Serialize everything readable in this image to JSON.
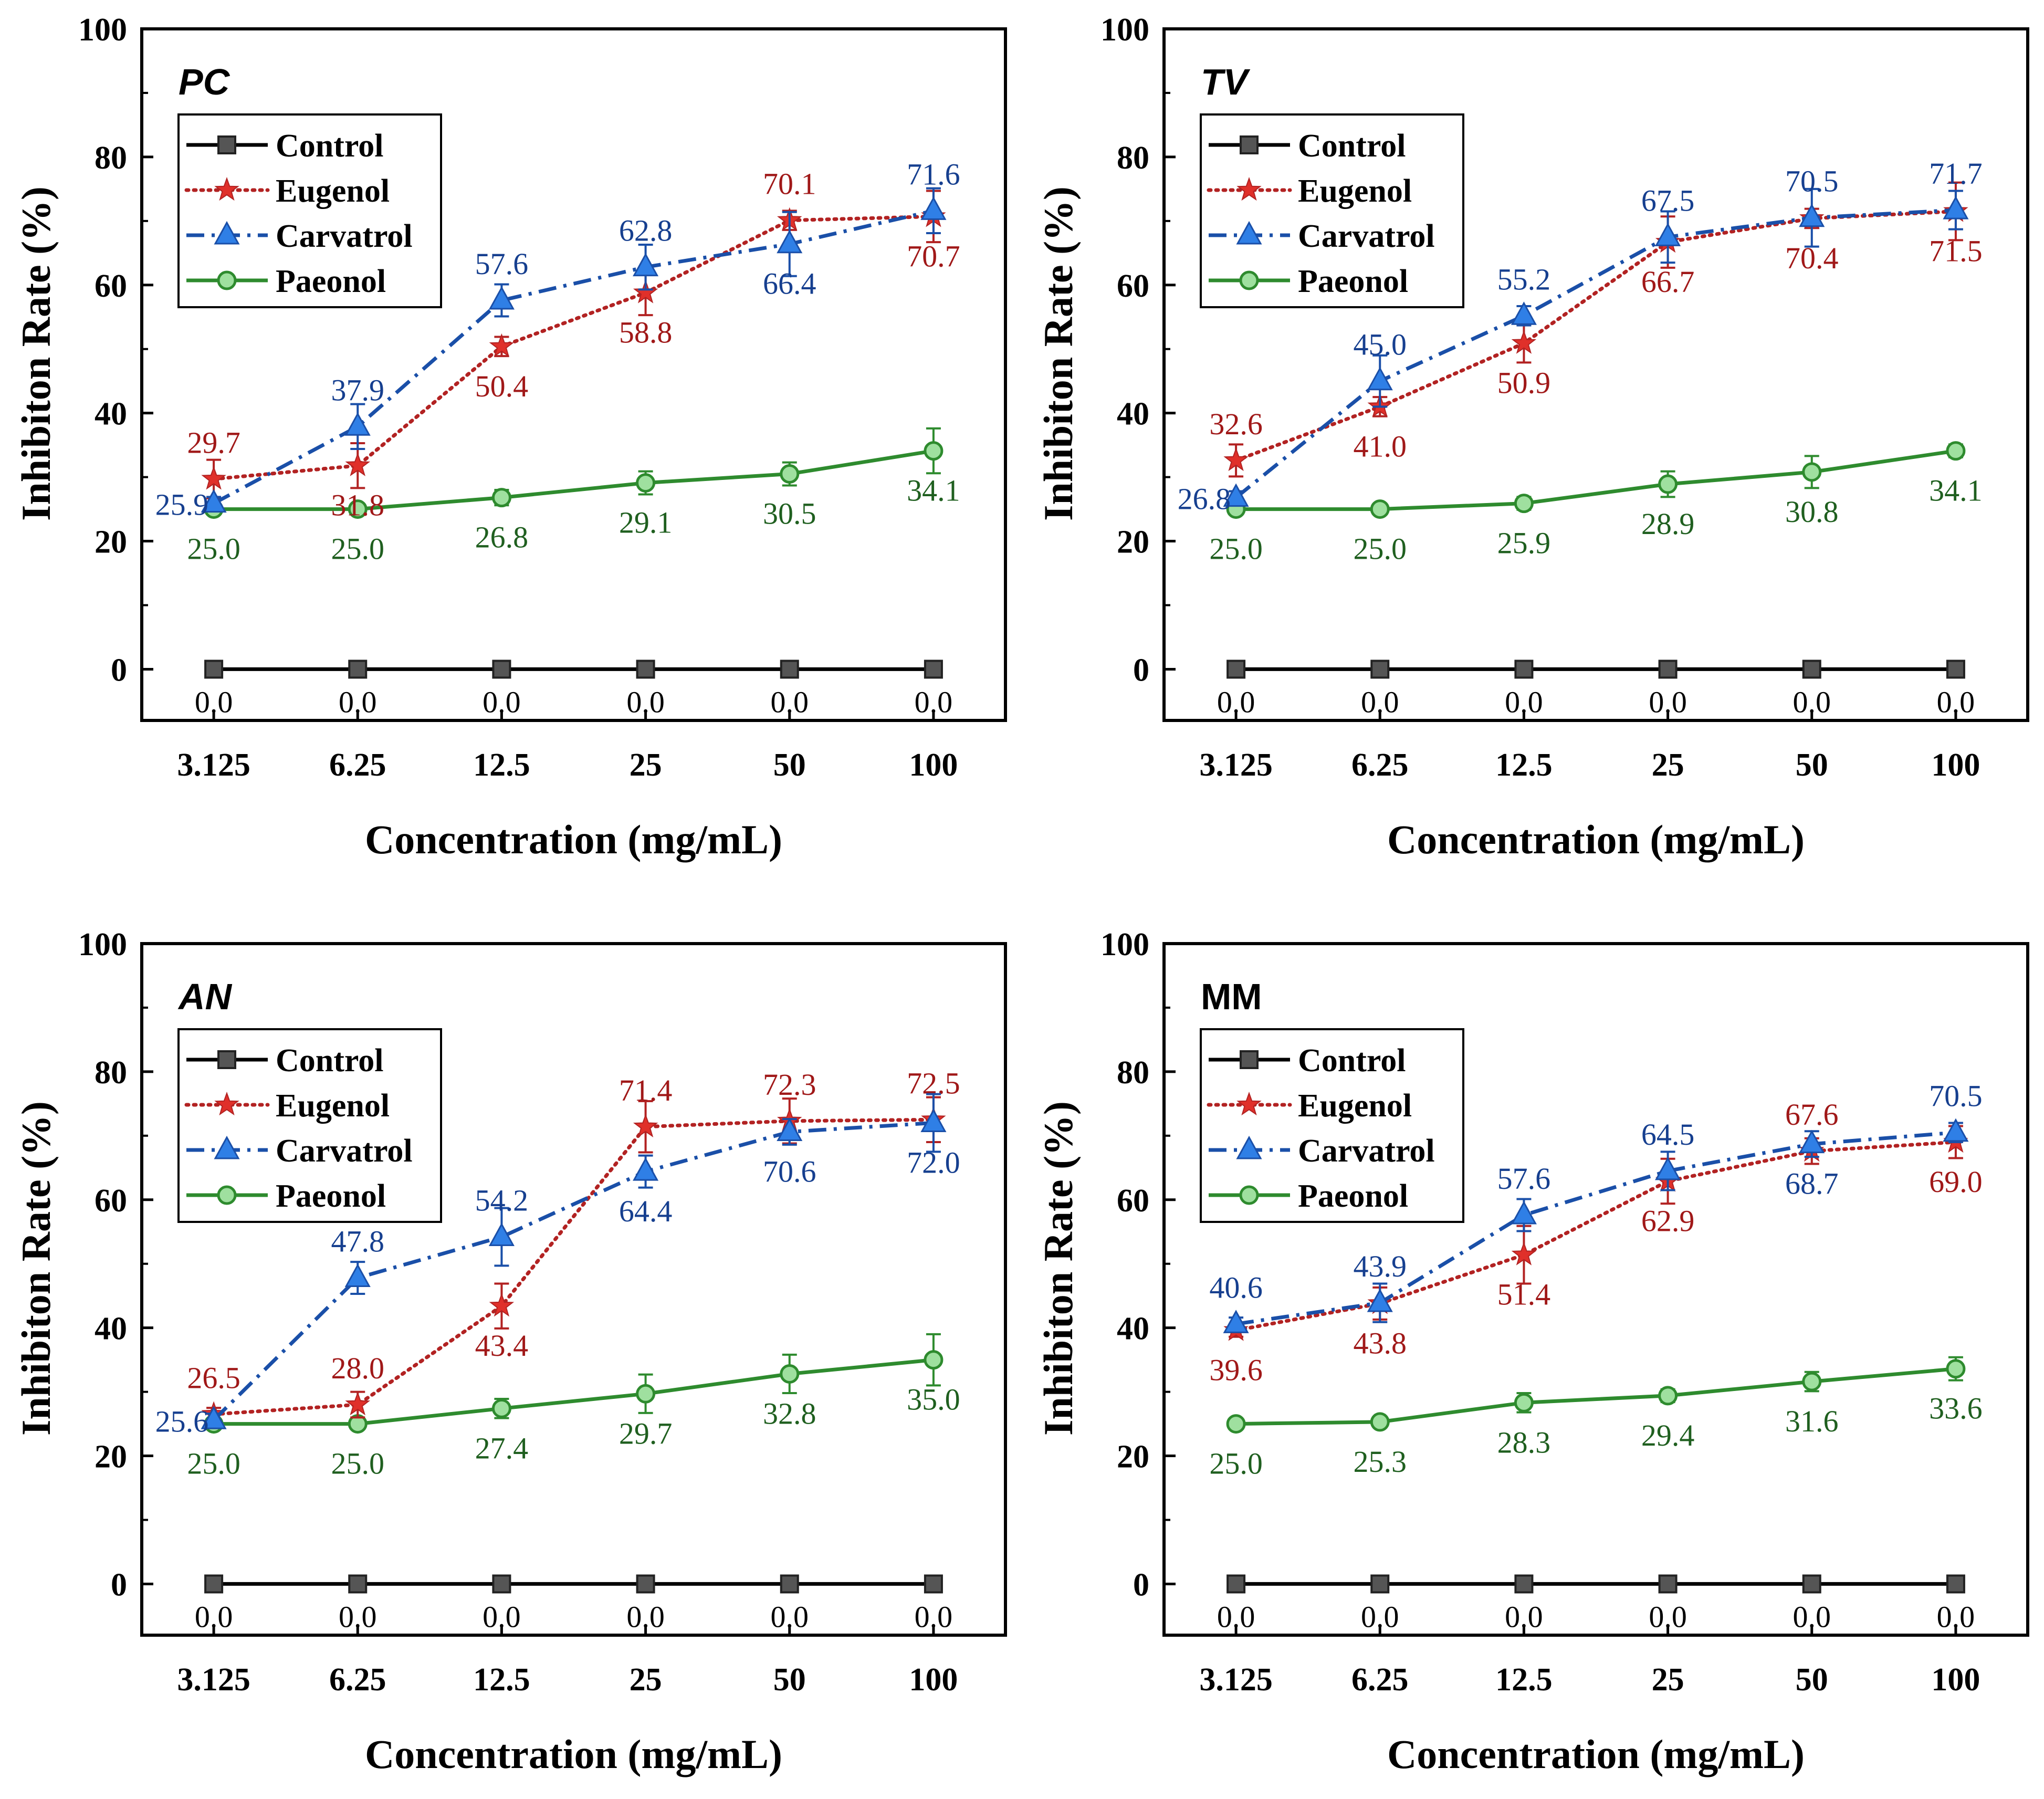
{
  "figure": {
    "x_axis_title": "Concentration (mg/mL)",
    "y_axis_title": "Inhibiton Rate (%)"
  },
  "series_styles": {
    "Control": {
      "color": "#000000",
      "marker": "square",
      "dash": "solid",
      "label_color": "#000000"
    },
    "Eugenol": {
      "color": "#b22222",
      "marker": "star",
      "dash": "dotted",
      "label_color": "#a01818"
    },
    "Carvatrol": {
      "color": "#1a4fa8",
      "marker": "triangle",
      "dash": "dashdot",
      "label_color": "#163f8f"
    },
    "Paeonol": {
      "color": "#2e8b2e",
      "marker": "circle",
      "dash": "solid",
      "label_color": "#1f5f1f"
    }
  },
  "chart_data": [
    {
      "type": "line",
      "title": "PC",
      "title_italic": true,
      "categories": [
        "3.125",
        "6.25",
        "12.5",
        "25",
        "50",
        "100"
      ],
      "xlabel": "Concentration (mg/mL)",
      "ylabel": "Inhibiton Rate (%)",
      "ylim": [
        -8,
        100
      ],
      "yticks": [
        "0",
        "20",
        "40",
        "60",
        "80",
        "100"
      ],
      "legend_position": "top-left",
      "series": [
        {
          "name": "Control",
          "values": [
            0,
            0,
            0,
            0,
            0,
            0
          ],
          "labels": [
            "0.0",
            "0.0",
            "0.0",
            "0.0",
            "0.0",
            "0.0"
          ]
        },
        {
          "name": "Eugenol",
          "values": [
            29.7,
            31.8,
            50.4,
            58.8,
            70.1,
            70.7
          ],
          "error": [
            3,
            3.5,
            1.5,
            3.5,
            1.5,
            4
          ],
          "labels": [
            "29.7",
            "31.8",
            "50.4",
            "58.8",
            "70.1",
            "70.7"
          ]
        },
        {
          "name": "Carvatrol",
          "values": [
            25.9,
            37.9,
            57.6,
            62.8,
            66.4,
            71.6
          ],
          "error": [
            1,
            3.5,
            2.5,
            3.5,
            5,
            3.5
          ],
          "labels": [
            "25.9",
            "37.9",
            "57.6",
            "62.8",
            "66.4",
            "71.6"
          ]
        },
        {
          "name": "Paeonol",
          "values": [
            25.0,
            25.0,
            26.8,
            29.1,
            30.5,
            34.1
          ],
          "error": [
            0.8,
            0.8,
            1.2,
            1.8,
            1.8,
            3.5
          ],
          "labels": [
            "25.0",
            "25.0",
            "26.8",
            "29.1",
            "30.5",
            "34.1"
          ]
        }
      ]
    },
    {
      "type": "line",
      "title": "TV",
      "title_italic": true,
      "categories": [
        "3.125",
        "6.25",
        "12.5",
        "25",
        "50",
        "100"
      ],
      "xlabel": "Concentration (mg/mL)",
      "ylabel": "Inhibiton Rate (%)",
      "ylim": [
        -8,
        100
      ],
      "yticks": [
        "0",
        "20",
        "40",
        "60",
        "80",
        "100"
      ],
      "legend_position": "top-left",
      "series": [
        {
          "name": "Control",
          "values": [
            0,
            0,
            0,
            0,
            0,
            0
          ],
          "labels": [
            "0.0",
            "0.0",
            "0.0",
            "0.0",
            "0.0",
            "0.0"
          ]
        },
        {
          "name": "Eugenol",
          "values": [
            32.6,
            41.0,
            50.9,
            66.7,
            70.4,
            71.5
          ],
          "error": [
            2.5,
            1.5,
            3,
            4,
            1.5,
            4.5
          ],
          "labels": [
            "32.6",
            "41.0",
            "50.9",
            "66.7",
            "70.4",
            "71.5"
          ]
        },
        {
          "name": "Carvatrol",
          "values": [
            26.8,
            45.0,
            55.2,
            67.5,
            70.5,
            71.7
          ],
          "error": [
            1,
            4,
            1.5,
            4,
            4.5,
            3
          ],
          "labels": [
            "26.8",
            "45.0",
            "55.2",
            "67.5",
            "70.5",
            "71.7"
          ]
        },
        {
          "name": "Paeonol",
          "values": [
            25.0,
            25.0,
            25.9,
            28.9,
            30.8,
            34.1
          ],
          "error": [
            0.8,
            0.8,
            1,
            2,
            2.5,
            1
          ],
          "labels": [
            "25.0",
            "25.0",
            "25.9",
            "28.9",
            "30.8",
            "34.1"
          ]
        }
      ]
    },
    {
      "type": "line",
      "title": "AN",
      "title_italic": true,
      "categories": [
        "3.125",
        "6.25",
        "12.5",
        "25",
        "50",
        "100"
      ],
      "xlabel": "Concentration (mg/mL)",
      "ylabel": "Inhibiton Rate (%)",
      "ylim": [
        -8,
        100
      ],
      "yticks": [
        "0",
        "20",
        "40",
        "60",
        "80",
        "100"
      ],
      "legend_position": "top-left",
      "series": [
        {
          "name": "Control",
          "values": [
            0,
            0,
            0,
            0,
            0,
            0
          ],
          "labels": [
            "0.0",
            "0.0",
            "0.0",
            "0.0",
            "0.0",
            "0.0"
          ]
        },
        {
          "name": "Eugenol",
          "values": [
            26.5,
            28.0,
            43.4,
            71.4,
            72.3,
            72.5
          ],
          "error": [
            1,
            2,
            3.5,
            4,
            3.5,
            3.5
          ],
          "labels": [
            "26.5",
            "28.0",
            "43.4",
            "71.4",
            "72.3",
            "72.5"
          ]
        },
        {
          "name": "Carvatrol",
          "values": [
            25.6,
            47.8,
            54.2,
            64.4,
            70.6,
            72.0
          ],
          "error": [
            1,
            2.5,
            4.5,
            2.5,
            2,
            4.5
          ],
          "labels": [
            "25.6",
            "47.8",
            "54.2",
            "64.4",
            "70.6",
            "72.0"
          ]
        },
        {
          "name": "Paeonol",
          "values": [
            25.0,
            25.0,
            27.4,
            29.7,
            32.8,
            35.0
          ],
          "error": [
            0.8,
            0.8,
            1.5,
            3,
            3,
            4
          ],
          "labels": [
            "25.0",
            "25.0",
            "27.4",
            "29.7",
            "32.8",
            "35.0"
          ]
        }
      ]
    },
    {
      "type": "line",
      "title": "MM",
      "title_italic": false,
      "categories": [
        "3.125",
        "6.25",
        "12.5",
        "25",
        "50",
        "100"
      ],
      "xlabel": "Concentration (mg/mL)",
      "ylabel": "Inhibiton Rate (%)",
      "ylim": [
        -8,
        100
      ],
      "yticks": [
        "0",
        "20",
        "40",
        "60",
        "80",
        "100"
      ],
      "legend_position": "top-left",
      "series": [
        {
          "name": "Control",
          "values": [
            0,
            0,
            0,
            0,
            0,
            0
          ],
          "labels": [
            "0.0",
            "0.0",
            "0.0",
            "0.0",
            "0.0",
            "0.0"
          ]
        },
        {
          "name": "Eugenol",
          "values": [
            39.6,
            43.8,
            51.4,
            62.9,
            67.6,
            69.0
          ],
          "error": [
            1,
            2.5,
            4.5,
            3.5,
            2,
            2.5
          ],
          "labels": [
            "39.6",
            "43.8",
            "51.4",
            "62.9",
            "67.6",
            "69.0"
          ]
        },
        {
          "name": "Carvatrol",
          "values": [
            40.6,
            43.9,
            57.6,
            64.5,
            68.7,
            70.5
          ],
          "error": [
            1,
            3,
            2.5,
            3,
            2,
            1.5
          ],
          "labels": [
            "40.6",
            "43.9",
            "57.6",
            "64.5",
            "68.7",
            "70.5"
          ]
        },
        {
          "name": "Paeonol",
          "values": [
            25.0,
            25.3,
            28.3,
            29.4,
            31.6,
            33.6
          ],
          "error": [
            0.8,
            0.8,
            1.5,
            1,
            1.5,
            1.8
          ],
          "labels": [
            "25.0",
            "25.3",
            "28.3",
            "29.4",
            "31.6",
            "33.6"
          ]
        }
      ]
    }
  ]
}
